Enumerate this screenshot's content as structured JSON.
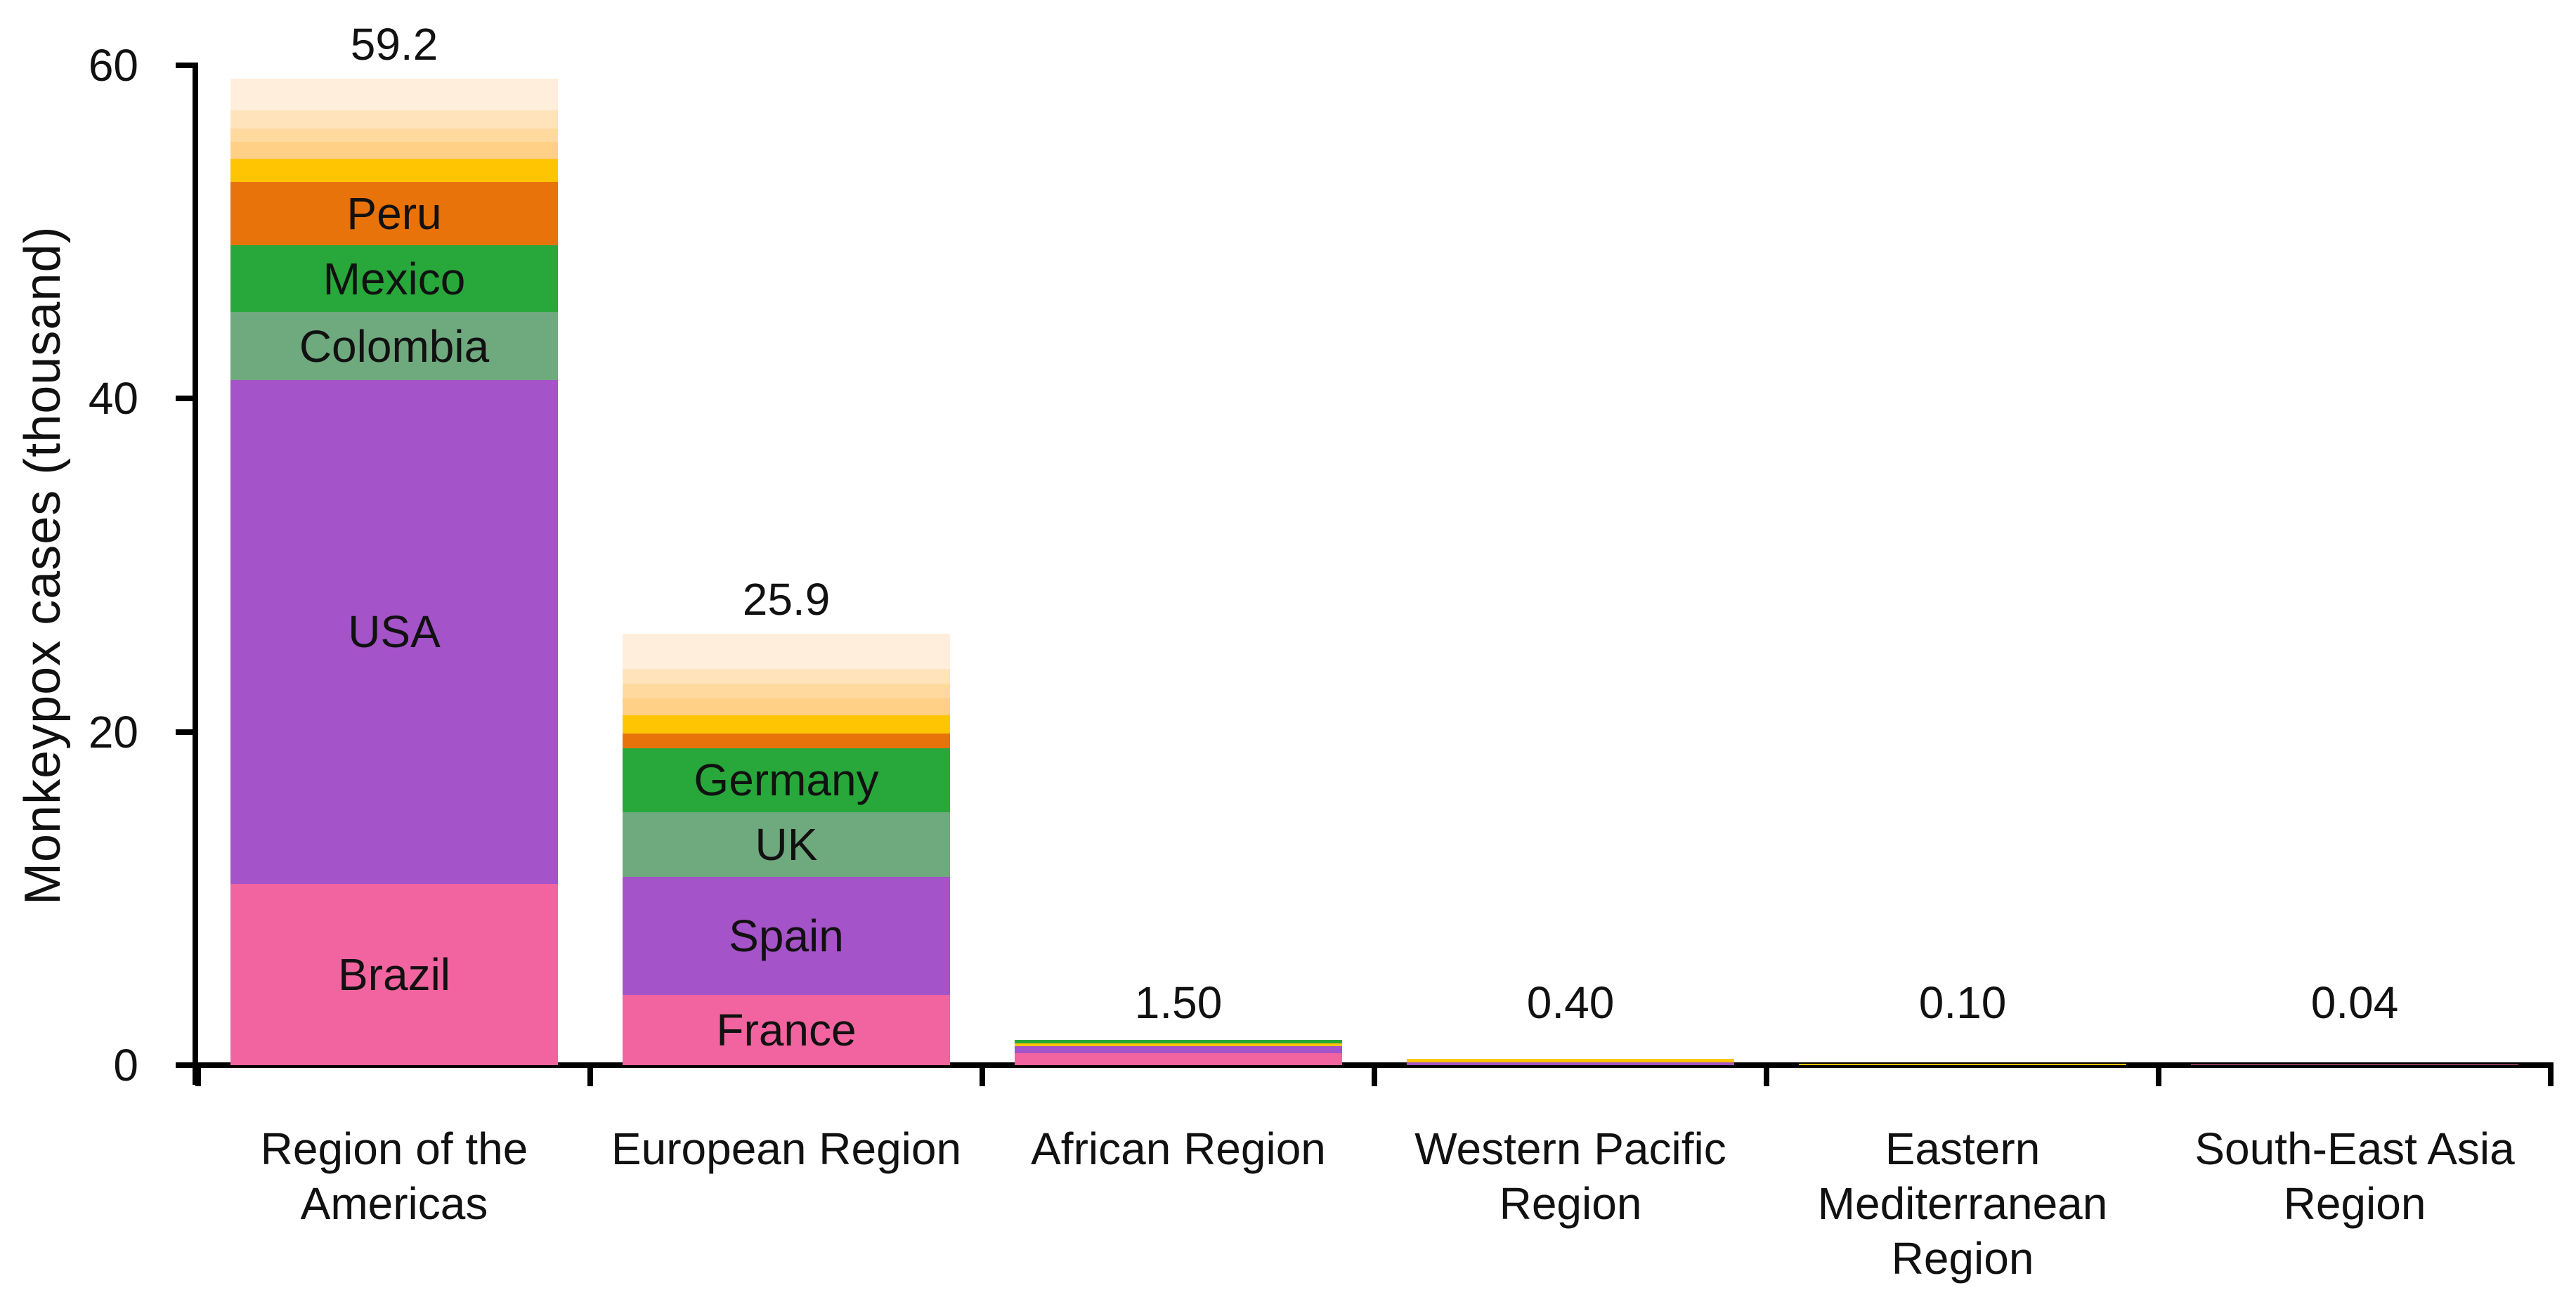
{
  "y_axis": {
    "title": "Monkeypox cases (thousand)",
    "tick_labels": [
      "0",
      "20",
      "40",
      "60"
    ]
  },
  "palette": {
    "pink": "#F2649F",
    "purple": "#A553C8",
    "sage_green": "#6FA97E",
    "green": "#28A83A",
    "orange": "#E8730B",
    "gold": "#FFC402",
    "others_band_1": "#FFD085",
    "others_band_2": "#FFD99E",
    "others_band_3": "#FFE3BB",
    "others_band_4": "#FFEEDB",
    "axis": "#000000",
    "text": "#111111"
  },
  "chart_data": {
    "type": "bar",
    "stacked": true,
    "title": "",
    "xlabel": "",
    "ylabel": "Monkeypox cases (thousand)",
    "unit": "thousand cases",
    "ylim": [
      0,
      60
    ],
    "yticks": [
      0,
      20,
      40,
      60
    ],
    "grid": false,
    "legend_position": "none (country segments labeled inside bars)",
    "categories": [
      "Region of the Americas",
      "European Region",
      "African Region",
      "Western Pacific Region",
      "Eastern Mediterranean Region",
      "South-East Asia Region"
    ],
    "totals": [
      59.2,
      25.9,
      1.5,
      0.4,
      0.1,
      0.04
    ],
    "total_labels": [
      "59.2",
      "25.9",
      "1.50",
      "0.40",
      "0.10",
      "0.04"
    ],
    "bars": [
      {
        "region": "Region of the Americas",
        "total": 59.2,
        "total_label": "59.2",
        "segments": [
          {
            "label": "Brazil",
            "value": 10.9,
            "color": "#F2649F"
          },
          {
            "label": "USA",
            "value": 30.2,
            "color": "#A553C8"
          },
          {
            "label": "Colombia",
            "value": 4.1,
            "color": "#6FA97E"
          },
          {
            "label": "Mexico",
            "value": 4.0,
            "color": "#28A83A"
          },
          {
            "label": "Peru",
            "value": 3.8,
            "color": "#E8730B"
          },
          {
            "label": "",
            "value": 1.4,
            "color": "#FFC402"
          },
          {
            "label": "",
            "value": 1.0,
            "color": "#FFD085"
          },
          {
            "label": "",
            "value": 0.8,
            "color": "#FFD99E"
          },
          {
            "label": "",
            "value": 1.1,
            "color": "#FFE3BB"
          },
          {
            "label": "",
            "value": 1.9,
            "color": "#FFEEDB"
          }
        ]
      },
      {
        "region": "European Region",
        "total": 25.9,
        "total_label": "25.9",
        "segments": [
          {
            "label": "France",
            "value": 4.2,
            "color": "#F2649F"
          },
          {
            "label": "Spain",
            "value": 7.1,
            "color": "#A553C8"
          },
          {
            "label": "UK",
            "value": 3.9,
            "color": "#6FA97E"
          },
          {
            "label": "Germany",
            "value": 3.8,
            "color": "#28A83A"
          },
          {
            "label": "",
            "value": 0.9,
            "color": "#E8730B"
          },
          {
            "label": "",
            "value": 1.1,
            "color": "#FFC402"
          },
          {
            "label": "",
            "value": 1.0,
            "color": "#FFD085"
          },
          {
            "label": "",
            "value": 0.9,
            "color": "#FFD99E"
          },
          {
            "label": "",
            "value": 0.9,
            "color": "#FFE3BB"
          },
          {
            "label": "",
            "value": 2.1,
            "color": "#FFEEDB"
          }
        ]
      },
      {
        "region": "African Region",
        "total": 1.5,
        "total_label": "1.50",
        "segments": [
          {
            "label": "",
            "value": 0.7,
            "color": "#F2649F"
          },
          {
            "label": "",
            "value": 0.45,
            "color": "#A553C8"
          },
          {
            "label": "",
            "value": 0.15,
            "color": "#FFC402"
          },
          {
            "label": "",
            "value": 0.2,
            "color": "#28A83A"
          }
        ]
      },
      {
        "region": "Western Pacific Region",
        "total": 0.4,
        "total_label": "0.40",
        "segments": [
          {
            "label": "",
            "value": 0.18,
            "color": "#A553C8"
          },
          {
            "label": "",
            "value": 0.22,
            "color": "#FFC402"
          }
        ]
      },
      {
        "region": "Eastern Mediterranean Region",
        "total": 0.1,
        "total_label": "0.10",
        "segments": [
          {
            "label": "",
            "value": 0.1,
            "color": "#FFC402"
          }
        ]
      },
      {
        "region": "South-East Asia Region",
        "total": 0.04,
        "total_label": "0.04",
        "segments": [
          {
            "label": "",
            "value": 0.04,
            "color": "#F2649F"
          }
        ]
      }
    ]
  }
}
